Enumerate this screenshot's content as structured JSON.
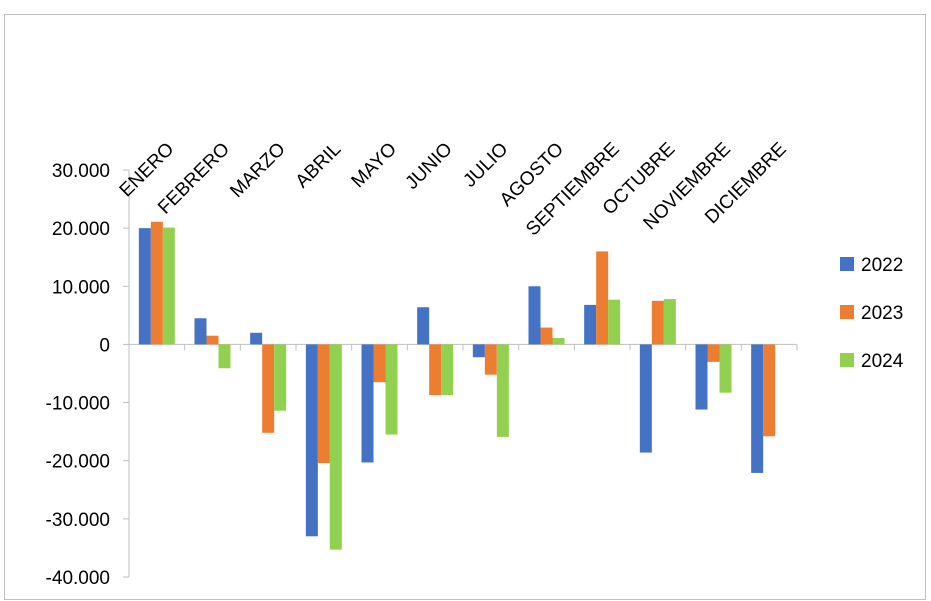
{
  "chart_data": {
    "type": "bar",
    "categories": [
      "ENERO",
      "FEBRERO",
      "MARZO",
      "ABRIL",
      "MAYO",
      "JUNIO",
      "JULIO",
      "AGOSTO",
      "SEPTIEMBRE",
      "OCTUBRE",
      "NOVIEMBRE",
      "DICIEMBRE"
    ],
    "series": [
      {
        "name": "2022",
        "color": "#4472C4",
        "values": [
          20000,
          4500,
          2000,
          -33000,
          -20300,
          6400,
          -2200,
          10000,
          6800,
          -18600,
          -11200,
          -22100
        ]
      },
      {
        "name": "2023",
        "color": "#ED7D31",
        "values": [
          21100,
          1500,
          -15200,
          -20400,
          -6500,
          -8700,
          -5200,
          2900,
          16000,
          7500,
          -3000,
          -15800
        ]
      },
      {
        "name": "2024",
        "color": "#92D050",
        "values": [
          20100,
          -4100,
          -11400,
          -35300,
          -15500,
          -8700,
          -15900,
          1100,
          7700,
          7800,
          -8300,
          0
        ]
      }
    ],
    "ylim": [
      -40000,
      30000
    ],
    "yticks": [
      30000,
      20000,
      10000,
      0,
      -10000,
      -20000,
      -30000,
      -40000
    ],
    "ytick_labels": [
      "30.000",
      "20.000",
      "10.000",
      "0",
      "-10.000",
      "-20.000",
      "-30.000",
      "-40.000"
    ],
    "legend_position": "right",
    "grid": false
  }
}
